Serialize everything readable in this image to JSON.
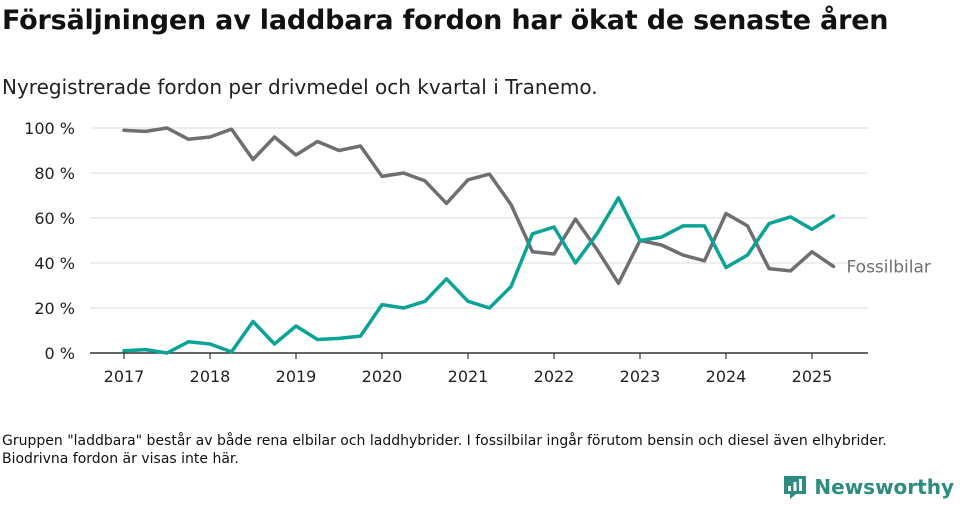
{
  "title": "Försäljningen av laddbara fordon har ökat de senaste åren",
  "subtitle": "Nyregistrerade fordon per drivmedel och kvartal i Tranemo.",
  "note": "Gruppen \"laddbara\" består av både rena elbilar och laddhybrider. I fossilbilar ingår förutom bensin och diesel även elhybrider. Biodrivna fordon är visas inte här.",
  "brand": {
    "name": "Newsworthy",
    "color": "#2e8b7f"
  },
  "chart_data": {
    "type": "line",
    "ylim": [
      0,
      100
    ],
    "y_ticks": [
      0,
      20,
      40,
      60,
      80,
      100
    ],
    "y_tick_labels": [
      "0 %",
      "20 %",
      "40 %",
      "60 %",
      "80 %",
      "100 %"
    ],
    "x_ticks": [
      "2017",
      "2018",
      "2019",
      "2020",
      "2021",
      "2022",
      "2023",
      "2024",
      "2025"
    ],
    "grid": true,
    "x": [
      "2017 Q1",
      "2017 Q2",
      "2017 Q3",
      "2017 Q4",
      "2018 Q1",
      "2018 Q2",
      "2018 Q3",
      "2018 Q4",
      "2019 Q1",
      "2019 Q2",
      "2019 Q3",
      "2019 Q4",
      "2020 Q1",
      "2020 Q2",
      "2020 Q3",
      "2020 Q4",
      "2021 Q1",
      "2021 Q2",
      "2021 Q3",
      "2021 Q4",
      "2022 Q1",
      "2022 Q2",
      "2022 Q3",
      "2022 Q4",
      "2023 Q1",
      "2023 Q2",
      "2023 Q3",
      "2023 Q4",
      "2024 Q1",
      "2024 Q2",
      "2024 Q3",
      "2024 Q4",
      "2025 Q1",
      "2025 Q2"
    ],
    "series": [
      {
        "name": "Fossilbilar",
        "color": "#6e6e73",
        "values": [
          99,
          98.5,
          100,
          95,
          96,
          99.5,
          86,
          96,
          88,
          94,
          90,
          92,
          78.5,
          80,
          76.5,
          66.5,
          77,
          79.5,
          66,
          45,
          44,
          59.5,
          46,
          31,
          50,
          48,
          43.5,
          41,
          62,
          56.5,
          37.5,
          36.5,
          45,
          38.5
        ]
      },
      {
        "name": "",
        "color": "#0aa396",
        "values": [
          1,
          1.5,
          0,
          5,
          4,
          0.5,
          14,
          4,
          12,
          6,
          6.5,
          7.5,
          21.5,
          20,
          23,
          33,
          23,
          20,
          29.5,
          53,
          56,
          40,
          53,
          69,
          50,
          51.5,
          56.5,
          56.5,
          38,
          43.5,
          57.5,
          60.5,
          55,
          61
        ]
      }
    ]
  }
}
